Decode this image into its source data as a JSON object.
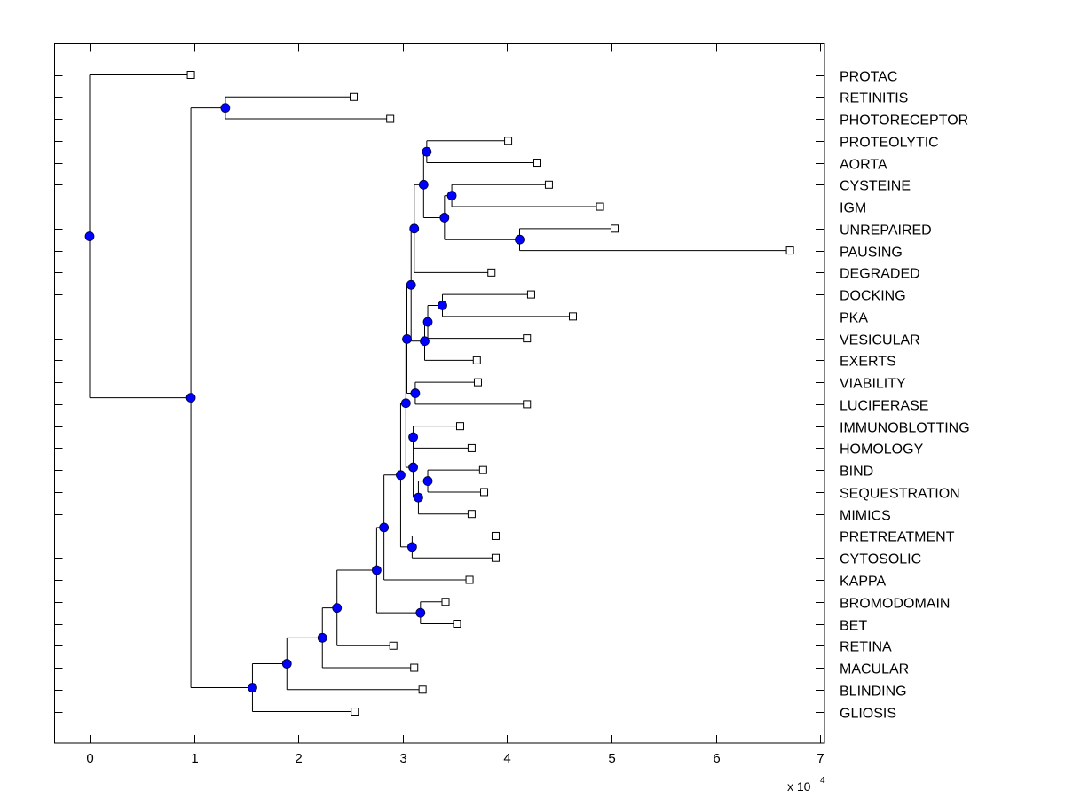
{
  "chart_data": {
    "type": "dendrogram",
    "title": "",
    "xlabel": "",
    "ylabel": "",
    "x_multiplier_label": "x 10",
    "x_multiplier_exponent": "4",
    "xlim": [
      -0.33,
      7.04
    ],
    "xticks": [
      0,
      1,
      2,
      3,
      4,
      5,
      6,
      7
    ],
    "xtick_labels": [
      "0",
      "1",
      "2",
      "3",
      "4",
      "5",
      "6",
      "7"
    ],
    "units": "x 10^4",
    "grid": false,
    "orientation": "left-to-right",
    "colors": {
      "node_fill": "#0000ff",
      "node_edge": "#000033",
      "leaf_fill": "#ffffff",
      "line": "#000000"
    },
    "leaves": [
      "PROTAC",
      "RETINITIS",
      "PHOTORECEPTOR",
      "PROTEOLYTIC",
      "AORTA",
      "CYSTEINE",
      "IGM",
      "UNREPAIRED",
      "PAUSING",
      "DEGRADED",
      "DOCKING",
      "PKA",
      "VESICULAR",
      "EXERTS",
      "VIABILITY",
      "LUCIFERASE",
      "IMMUNOBLOTTING",
      "HOMOLOGY",
      "BIND",
      "SEQUESTRATION",
      "MIMICS",
      "PRETREATMENT",
      "CYTOSOLIC",
      "KAPPA",
      "BROMODOMAIN",
      "BET",
      "RETINA",
      "MACULAR",
      "BLINDING",
      "GLIOSIS"
    ],
    "tree": {
      "x": 0.0,
      "children": [
        {
          "leaf": "PROTAC",
          "x": 0.97
        },
        {
          "x": 0.97,
          "children": [
            {
              "x": 1.3,
              "children": [
                {
                  "leaf": "RETINITIS",
                  "x": 2.53
                },
                {
                  "leaf": "PHOTORECEPTOR",
                  "x": 2.88
                }
              ]
            },
            {
              "x": 1.56,
              "children": [
                {
                  "x": 1.89,
                  "children": [
                    {
                      "x": 2.23,
                      "children": [
                        {
                          "x": 2.37,
                          "children": [
                            {
                              "x": 2.75,
                              "children": [
                                {
                                  "x": 2.82,
                                  "children": [
                                    {
                                      "x": 2.98,
                                      "children": [
                                        {
                                          "x": 3.03,
                                          "children": [
                                            {
                                              "x": 3.04,
                                              "children": [
                                                {
                                                  "x": 3.08,
                                                  "children": [
                                                    {
                                                      "x": 3.11,
                                                      "children": [
                                                        {
                                                          "x": 3.2,
                                                          "children": [
                                                            {
                                                              "x": 3.23,
                                                              "children": [
                                                                {
                                                                  "leaf": "PROTEOLYTIC",
                                                                  "x": 4.01
                                                                },
                                                                {
                                                                  "leaf": "AORTA",
                                                                  "x": 4.29
                                                                }
                                                              ]
                                                            },
                                                            {
                                                              "x": 3.4,
                                                              "children": [
                                                                {
                                                                  "x": 3.47,
                                                                  "children": [
                                                                    {
                                                                      "leaf": "CYSTEINE",
                                                                      "x": 4.4
                                                                    },
                                                                    {
                                                                      "leaf": "IGM",
                                                                      "x": 4.89
                                                                    }
                                                                  ]
                                                                },
                                                                {
                                                                  "x": 4.12,
                                                                  "children": [
                                                                    {
                                                                      "leaf": "UNREPAIRED",
                                                                      "x": 5.03
                                                                    },
                                                                    {
                                                                      "leaf": "PAUSING",
                                                                      "x": 6.71
                                                                    }
                                                                  ]
                                                                }
                                                              ]
                                                            }
                                                          ]
                                                        },
                                                        {
                                                          "leaf": "DEGRADED",
                                                          "x": 3.85
                                                        }
                                                      ]
                                                    },
                                                    {
                                                      "x": 3.21,
                                                      "children": [
                                                        {
                                                          "x": 3.24,
                                                          "children": [
                                                            {
                                                              "x": 3.38,
                                                              "children": [
                                                                {
                                                                  "leaf": "DOCKING",
                                                                  "x": 4.23
                                                                },
                                                                {
                                                                  "leaf": "PKA",
                                                                  "x": 4.63
                                                                }
                                                              ]
                                                            },
                                                            {
                                                              "leaf": "VESICULAR",
                                                              "x": 4.19
                                                            }
                                                          ]
                                                        },
                                                        {
                                                          "leaf": "EXERTS",
                                                          "x": 3.71
                                                        }
                                                      ]
                                                    }
                                                  ]
                                                },
                                                {
                                                  "x": 3.12,
                                                  "children": [
                                                    {
                                                      "leaf": "VIABILITY",
                                                      "x": 3.72
                                                    },
                                                    {
                                                      "leaf": "LUCIFERASE",
                                                      "x": 4.19
                                                    }
                                                  ]
                                                }
                                              ]
                                            },
                                            {
                                              "x": 3.1,
                                              "children": [
                                                {
                                                  "x": 3.1,
                                                  "children": [
                                                    {
                                                      "leaf": "IMMUNOBLOTTING",
                                                      "x": 3.55
                                                    },
                                                    {
                                                      "leaf": "HOMOLOGY",
                                                      "x": 3.66
                                                    }
                                                  ]
                                                },
                                                {
                                                  "x": 3.15,
                                                  "children": [
                                                    {
                                                      "x": 3.24,
                                                      "children": [
                                                        {
                                                          "leaf": "BIND",
                                                          "x": 3.77
                                                        },
                                                        {
                                                          "leaf": "SEQUESTRATION",
                                                          "x": 3.78
                                                        }
                                                      ]
                                                    },
                                                    {
                                                      "leaf": "MIMICS",
                                                      "x": 3.66
                                                    }
                                                  ]
                                                }
                                              ]
                                            }
                                          ]
                                        },
                                        {
                                          "x": 3.09,
                                          "children": [
                                            {
                                              "leaf": "PRETREATMENT",
                                              "x": 3.89
                                            },
                                            {
                                              "leaf": "CYTOSOLIC",
                                              "x": 3.89
                                            }
                                          ]
                                        }
                                      ]
                                    },
                                    {
                                      "leaf": "KAPPA",
                                      "x": 3.64
                                    }
                                  ]
                                },
                                {
                                  "x": 3.17,
                                  "children": [
                                    {
                                      "leaf": "BROMODOMAIN",
                                      "x": 3.41
                                    },
                                    {
                                      "leaf": "BET",
                                      "x": 3.52
                                    }
                                  ]
                                }
                              ]
                            },
                            {
                              "leaf": "RETINA",
                              "x": 2.91
                            }
                          ]
                        },
                        {
                          "leaf": "MACULAR",
                          "x": 3.11
                        }
                      ]
                    },
                    {
                      "leaf": "BLINDING",
                      "x": 3.19
                    }
                  ]
                },
                {
                  "leaf": "GLIOSIS",
                  "x": 2.54
                }
              ]
            }
          ]
        }
      ]
    }
  }
}
